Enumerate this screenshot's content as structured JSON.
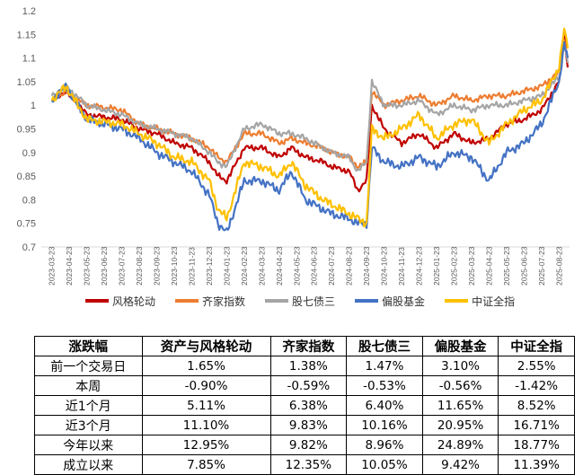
{
  "chart_data": {
    "type": "line",
    "y_ticks": [
      "1.2",
      "1.15",
      "1.1",
      "1.05",
      "1",
      "0.95",
      "0.9",
      "0.85",
      "0.8",
      "0.75",
      "0.7"
    ],
    "ylim": [
      0.7,
      1.2
    ],
    "x_ticks": [
      "2023-03-23",
      "2023-04-23",
      "2023-05-23",
      "2023-06-23",
      "2023-07-23",
      "2023-08-23",
      "2023-09-23",
      "2023-10-23",
      "2023-11-23",
      "2023-12-23",
      "2024-01-23",
      "2024-02-23",
      "2024-03-23",
      "2024-04-23",
      "2024-05-23",
      "2024-06-23",
      "2024-07-23",
      "2024-08-23",
      "2024-09-23",
      "2024-10-23",
      "2024-11-23",
      "2024-12-23",
      "2025-01-23",
      "2025-02-23",
      "2025-03-23",
      "2025-04-23",
      "2025-05-23",
      "2025-06-23",
      "2025-07-23",
      "2025-08-23"
    ],
    "legend_position": "bottom",
    "series": [
      {
        "name": "风格轮动",
        "color": "#C00000",
        "points": [
          [
            0,
            1.01
          ],
          [
            0.8,
            1.03
          ],
          [
            2,
            0.98
          ],
          [
            4,
            0.97
          ],
          [
            5,
            0.95
          ],
          [
            6,
            0.94
          ],
          [
            7,
            0.92
          ],
          [
            8,
            0.91
          ],
          [
            9,
            0.88
          ],
          [
            9.5,
            0.85
          ],
          [
            10,
            0.84
          ],
          [
            11,
            0.91
          ],
          [
            12,
            0.91
          ],
          [
            13,
            0.89
          ],
          [
            13.7,
            0.91
          ],
          [
            14.5,
            0.89
          ],
          [
            15.5,
            0.88
          ],
          [
            16,
            0.87
          ],
          [
            17,
            0.86
          ],
          [
            17.5,
            0.82
          ],
          [
            18,
            0.84
          ],
          [
            18.3,
            1.0
          ],
          [
            19,
            0.95
          ],
          [
            20,
            0.92
          ],
          [
            21,
            0.94
          ],
          [
            22,
            0.91
          ],
          [
            23,
            0.94
          ],
          [
            24,
            0.92
          ],
          [
            25,
            0.93
          ],
          [
            26,
            0.96
          ],
          [
            27,
            0.97
          ],
          [
            28,
            0.99
          ],
          [
            29,
            1.05
          ],
          [
            29.3,
            1.15
          ],
          [
            29.5,
            1.08
          ]
        ]
      },
      {
        "name": "齐家指数",
        "color": "#ED7D31",
        "points": [
          [
            0,
            1.01
          ],
          [
            0.8,
            1.03
          ],
          [
            2,
            1.0
          ],
          [
            4,
            0.99
          ],
          [
            5,
            0.96
          ],
          [
            6,
            0.95
          ],
          [
            7,
            0.94
          ],
          [
            8,
            0.93
          ],
          [
            9,
            0.91
          ],
          [
            9.5,
            0.89
          ],
          [
            10,
            0.88
          ],
          [
            11,
            0.94
          ],
          [
            12,
            0.94
          ],
          [
            13,
            0.92
          ],
          [
            13.7,
            0.93
          ],
          [
            14.5,
            0.92
          ],
          [
            15.5,
            0.91
          ],
          [
            16,
            0.9
          ],
          [
            17,
            0.89
          ],
          [
            17.5,
            0.87
          ],
          [
            18,
            0.88
          ],
          [
            18.3,
            1.03
          ],
          [
            19,
            1.0
          ],
          [
            20,
            1.01
          ],
          [
            21,
            1.02
          ],
          [
            22,
            1.0
          ],
          [
            23,
            1.02
          ],
          [
            24,
            1.01
          ],
          [
            25,
            1.02
          ],
          [
            26,
            1.02
          ],
          [
            27,
            1.03
          ],
          [
            28,
            1.04
          ],
          [
            29,
            1.07
          ],
          [
            29.3,
            1.14
          ],
          [
            29.5,
            1.1
          ]
        ]
      },
      {
        "name": "股七债三",
        "color": "#A5A5A5",
        "points": [
          [
            0,
            1.02
          ],
          [
            0.8,
            1.04
          ],
          [
            2,
            1.0
          ],
          [
            4,
            0.98
          ],
          [
            5,
            0.96
          ],
          [
            6,
            0.95
          ],
          [
            7,
            0.94
          ],
          [
            8,
            0.93
          ],
          [
            9,
            0.9
          ],
          [
            9.5,
            0.88
          ],
          [
            10,
            0.87
          ],
          [
            11,
            0.95
          ],
          [
            12,
            0.96
          ],
          [
            13,
            0.94
          ],
          [
            13.7,
            0.94
          ],
          [
            14.5,
            0.93
          ],
          [
            15.5,
            0.91
          ],
          [
            16,
            0.9
          ],
          [
            17,
            0.89
          ],
          [
            17.5,
            0.86
          ],
          [
            18,
            0.88
          ],
          [
            18.3,
            1.05
          ],
          [
            19,
            1.0
          ],
          [
            20,
            1.0
          ],
          [
            21,
            1.01
          ],
          [
            22,
            0.98
          ],
          [
            23,
            1.0
          ],
          [
            24,
            0.99
          ],
          [
            25,
            1.0
          ],
          [
            26,
            1.0
          ],
          [
            27,
            1.01
          ],
          [
            28,
            1.02
          ],
          [
            29,
            1.06
          ],
          [
            29.3,
            1.13
          ],
          [
            29.5,
            1.09
          ]
        ]
      },
      {
        "name": "偏股基金",
        "color": "#4472C4",
        "points": [
          [
            0,
            1.01
          ],
          [
            0.8,
            1.04
          ],
          [
            2,
            0.97
          ],
          [
            4,
            0.95
          ],
          [
            5,
            0.93
          ],
          [
            6,
            0.9
          ],
          [
            7,
            0.88
          ],
          [
            8,
            0.86
          ],
          [
            9,
            0.81
          ],
          [
            9.5,
            0.75
          ],
          [
            10,
            0.73
          ],
          [
            11,
            0.84
          ],
          [
            12,
            0.84
          ],
          [
            13,
            0.82
          ],
          [
            13.7,
            0.86
          ],
          [
            14.5,
            0.8
          ],
          [
            15.5,
            0.78
          ],
          [
            16,
            0.77
          ],
          [
            17,
            0.76
          ],
          [
            17.5,
            0.75
          ],
          [
            18,
            0.75
          ],
          [
            18.3,
            0.91
          ],
          [
            19,
            0.88
          ],
          [
            20,
            0.87
          ],
          [
            21,
            0.89
          ],
          [
            22,
            0.87
          ],
          [
            23,
            0.9
          ],
          [
            24,
            0.89
          ],
          [
            25,
            0.84
          ],
          [
            26,
            0.9
          ],
          [
            27,
            0.92
          ],
          [
            28,
            0.96
          ],
          [
            29,
            1.05
          ],
          [
            29.3,
            1.13
          ],
          [
            29.5,
            1.1
          ]
        ]
      },
      {
        "name": "中证全指",
        "color": "#FFC000",
        "points": [
          [
            0,
            1.01
          ],
          [
            0.8,
            1.04
          ],
          [
            2,
            0.97
          ],
          [
            4,
            0.96
          ],
          [
            5,
            0.94
          ],
          [
            6,
            0.92
          ],
          [
            7,
            0.89
          ],
          [
            8,
            0.88
          ],
          [
            9,
            0.84
          ],
          [
            9.5,
            0.78
          ],
          [
            10,
            0.76
          ],
          [
            11,
            0.88
          ],
          [
            12,
            0.87
          ],
          [
            13,
            0.85
          ],
          [
            13.7,
            0.88
          ],
          [
            14.5,
            0.83
          ],
          [
            15.5,
            0.8
          ],
          [
            16,
            0.79
          ],
          [
            17,
            0.77
          ],
          [
            17.5,
            0.76
          ],
          [
            18,
            0.75
          ],
          [
            18.3,
            0.95
          ],
          [
            19,
            0.93
          ],
          [
            20,
            0.95
          ],
          [
            21,
            0.98
          ],
          [
            22,
            0.93
          ],
          [
            23,
            0.96
          ],
          [
            24,
            0.97
          ],
          [
            25,
            0.92
          ],
          [
            26,
            0.96
          ],
          [
            27,
            0.99
          ],
          [
            28,
            1.01
          ],
          [
            29,
            1.08
          ],
          [
            29.3,
            1.16
          ],
          [
            29.5,
            1.12
          ]
        ]
      }
    ]
  },
  "table": {
    "headers": [
      "涨跌幅",
      "资产与风格轮动",
      "齐家指数",
      "股七债三",
      "偏股基金",
      "中证全指"
    ],
    "rows": [
      [
        "前一个交易日",
        "1.65%",
        "1.38%",
        "1.47%",
        "3.10%",
        "2.55%"
      ],
      [
        "本周",
        "-0.90%",
        "-0.59%",
        "-0.53%",
        "-0.56%",
        "-1.42%"
      ],
      [
        "近1个月",
        "5.11%",
        "6.38%",
        "6.40%",
        "11.65%",
        "8.52%"
      ],
      [
        "近3个月",
        "11.10%",
        "9.83%",
        "10.16%",
        "20.95%",
        "16.71%"
      ],
      [
        "今年以来",
        "12.95%",
        "9.82%",
        "8.96%",
        "24.89%",
        "18.77%"
      ],
      [
        "成立以来",
        "7.85%",
        "12.35%",
        "10.05%",
        "9.42%",
        "11.39%"
      ]
    ]
  }
}
